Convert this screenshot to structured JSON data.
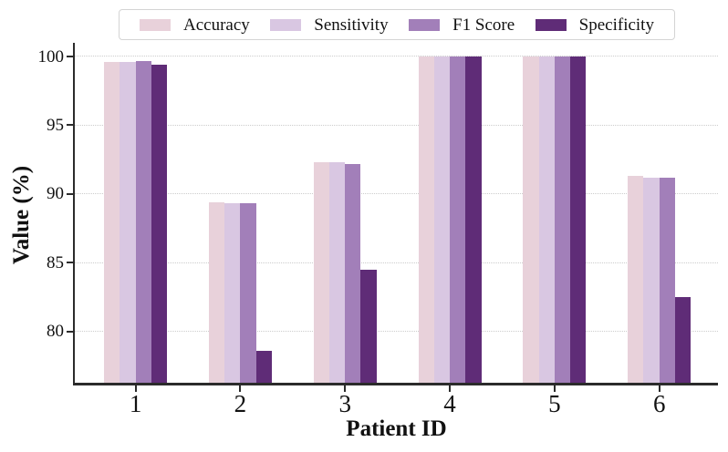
{
  "chart_data": {
    "type": "bar",
    "title": "",
    "xlabel": "Patient ID",
    "ylabel": "Value (%)",
    "categories": [
      "1",
      "2",
      "3",
      "4",
      "5",
      "6"
    ],
    "series": [
      {
        "name": "Accuracy",
        "color": "#e8d1da",
        "values": [
          99.6,
          89.4,
          92.3,
          100,
          100,
          91.3
        ]
      },
      {
        "name": "Sensitivity",
        "color": "#d9c7e2",
        "values": [
          99.6,
          89.3,
          92.3,
          100,
          100,
          91.2
        ]
      },
      {
        "name": "F1 Score",
        "color": "#a27fb9",
        "values": [
          99.7,
          89.3,
          92.2,
          100,
          100,
          91.2
        ]
      },
      {
        "name": "Specificity",
        "color": "#5f2c77",
        "values": [
          99.4,
          78.6,
          84.5,
          100,
          100,
          82.5
        ]
      }
    ],
    "ylim": [
      76.2,
      101.0
    ],
    "yticks": [
      80,
      85,
      90,
      95,
      100
    ],
    "xticks": [
      "1",
      "2",
      "3",
      "4",
      "5",
      "6"
    ],
    "grid": "horizontal-dotted",
    "gridline_color": "#cccccc",
    "legend_position": "top",
    "bar_group_total_width_units": 0.6
  }
}
